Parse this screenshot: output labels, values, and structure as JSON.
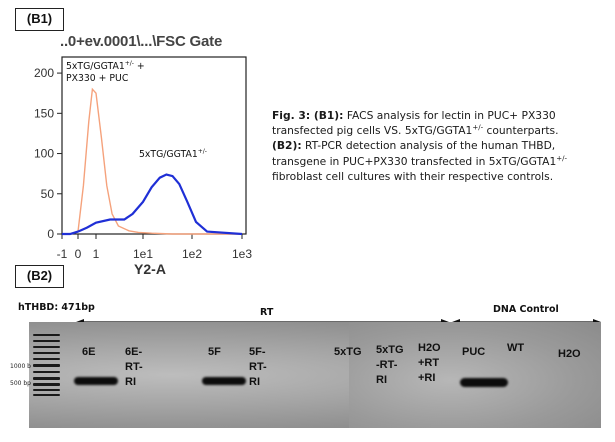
{
  "panel_b1_label": "(B1)",
  "panel_b2_label": "(B2)",
  "facs": {
    "title": "..0+ev.0001\\...\\FSC Gate",
    "xlabel": "Y2-A",
    "x_ticks": [
      "-1",
      "0",
      "1",
      "1e1",
      "1e2",
      "1e3"
    ],
    "y_ticks": [
      "0",
      "50",
      "100",
      "150",
      "200"
    ],
    "annot_ctrl_line1": "5xTG/GGTA1",
    "annot_ctrl_sup": "+/-",
    "annot_ctrl_line1_tail": " +",
    "annot_ctrl_line2": "PX330 + PUC",
    "annot_tg": "5xTG/GGTA1",
    "annot_tg_sup": "+/-",
    "colors": {
      "control": "#f5a27c",
      "transgenic": "#1f2fd6"
    }
  },
  "chart_data": {
    "type": "line",
    "title": "..0+ev.0001\\...\\FSC Gate",
    "xlabel": "Y2-A",
    "ylabel": "",
    "xscale": "biexponential (log)",
    "x_ticks": [
      "-1",
      "0",
      "1",
      "1e1",
      "1e2",
      "1e3"
    ],
    "ylim": [
      0,
      220
    ],
    "grid": false,
    "series": [
      {
        "name": "5xTG/GGTA1+/- + PX330 + PUC",
        "color": "#f5a27c",
        "x": [
          -1,
          -0.5,
          0,
          0.3,
          0.6,
          0.8,
          1,
          1.3,
          1.7,
          2.2,
          3,
          5,
          8,
          15,
          40,
          1000
        ],
        "values": [
          0,
          0,
          3,
          60,
          140,
          180,
          175,
          120,
          60,
          25,
          10,
          4,
          2,
          1,
          0,
          0
        ]
      },
      {
        "name": "5xTG/GGTA1+/-",
        "color": "#1f2fd6",
        "x": [
          -1,
          -0.5,
          0,
          0.5,
          1,
          2,
          4,
          6,
          10,
          15,
          22,
          30,
          40,
          55,
          80,
          120,
          200,
          1000
        ],
        "values": [
          0,
          0,
          3,
          8,
          14,
          18,
          18,
          25,
          40,
          58,
          70,
          74,
          72,
          62,
          40,
          15,
          3,
          0
        ]
      }
    ]
  },
  "caption": {
    "p1_bold": "Fig. 3: (B1):",
    "p1_text": " FACS analysis for lectin in PUC+ PX330 transfected pig cells VS. 5xTG/GGTA1",
    "p1_sup": "+/-",
    "p1_tail": " counterparts.",
    "p2_bold": "(B2):",
    "p2_text": " RT-PCR detection analysis of the human THBD, transgene in PUC+PX330 transfected in 5xTG/GGTA1",
    "p2_sup": "+/-",
    "p2_tail": " fibroblast cell cultures with their respective controls."
  },
  "gel": {
    "hthbd": "hTHBD: 471bp",
    "rt": "RT",
    "dna_control": "DNA Control",
    "ladder_1000": "1000 b",
    "ladder_500": "500 bp",
    "lanes": [
      {
        "label": "6E",
        "band": true
      },
      {
        "label": "6E-\nRT-\nRI",
        "band": false
      },
      {
        "label": "5F",
        "band": true
      },
      {
        "label": "5F-\nRT-\nRI",
        "band": false
      },
      {
        "label": "5xTG",
        "band": false
      },
      {
        "label": "5xTG\n-RT-\nRI",
        "band": false
      },
      {
        "label": "H2O\n+RT\n+RI",
        "band": false
      },
      {
        "label": "PUC",
        "band": true
      },
      {
        "label": "WT",
        "band": false
      },
      {
        "label": "H2O",
        "band": false
      }
    ]
  }
}
